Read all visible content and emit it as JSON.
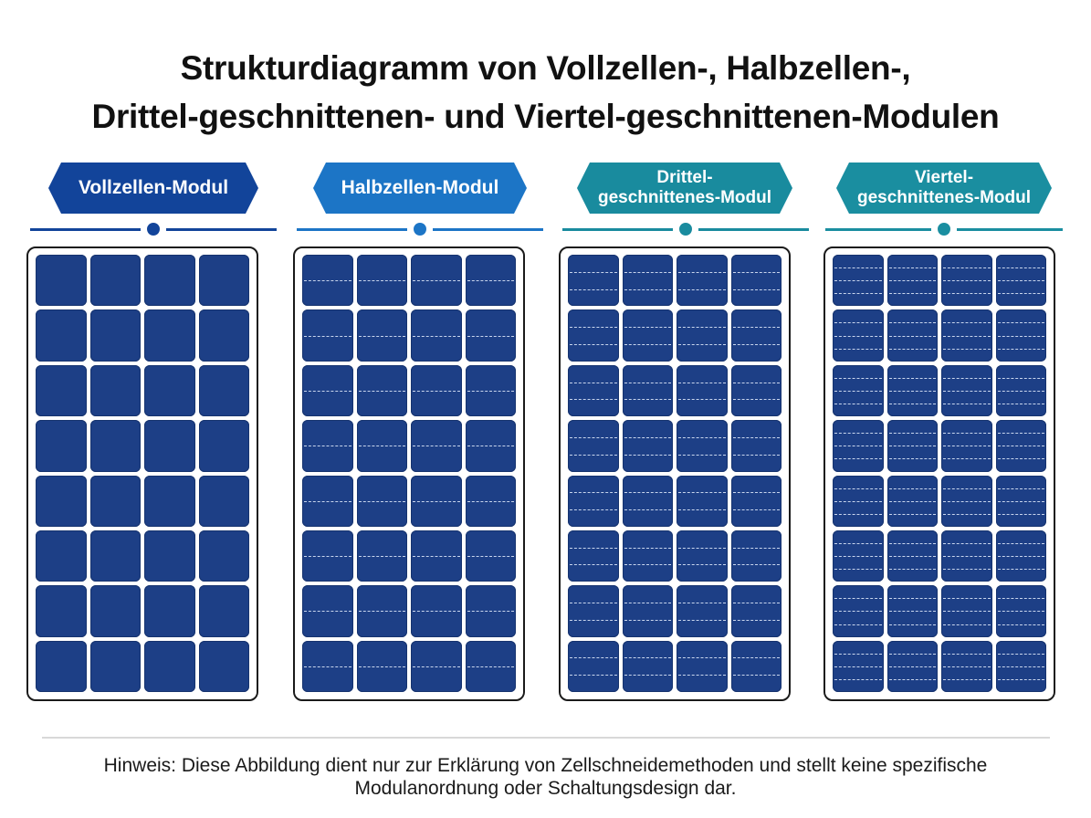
{
  "title": {
    "line1": "Strukturdiagramm von Vollzellen-, Halbzellen-,",
    "line2": "Drittel-geschnittenen- und Viertel-geschnittenen-Modulen"
  },
  "modules": [
    {
      "label": "Vollzellen-Modul",
      "color": "#12449a",
      "cuts_per_cell": 0,
      "rows": 8,
      "cols": 4
    },
    {
      "label": "Halbzellen-Modul",
      "color": "#1c75c6",
      "cuts_per_cell": 1,
      "rows": 8,
      "cols": 4
    },
    {
      "label": "Drittel-\ngeschnittenes-Modul",
      "color": "#198b9e",
      "cuts_per_cell": 2,
      "rows": 8,
      "cols": 4
    },
    {
      "label": "Viertel-\ngeschnittenes-Modul",
      "color": "#1a8ea0",
      "cuts_per_cell": 3,
      "rows": 8,
      "cols": 4
    }
  ],
  "colors": {
    "cell": "#1d3f86",
    "cut_line": "#e6f0ff"
  },
  "note": {
    "line1": "Hinweis: Diese Abbildung dient nur zur Erklärung von Zellschneidemethoden und stellt keine spezifische",
    "line2": "Modulanordnung oder Schaltungsdesign dar."
  }
}
